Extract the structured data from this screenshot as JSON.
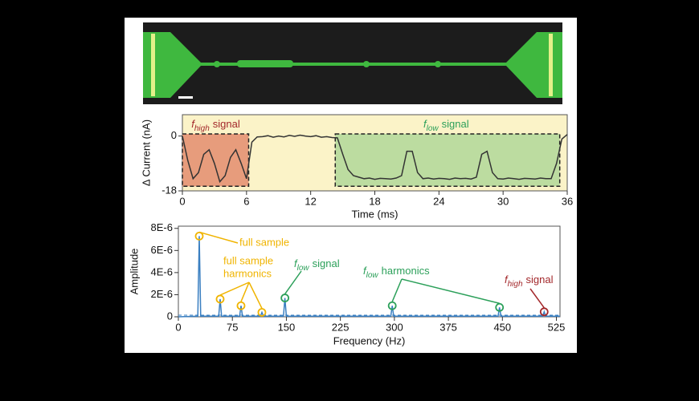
{
  "chart_data": [
    {
      "type": "line",
      "ylabel": "Δ Current (nA)",
      "xlabel": "Time (ms)",
      "xlim": [
        0,
        36
      ],
      "xticks": [
        0,
        6,
        12,
        18,
        24,
        30,
        36
      ],
      "ylim": [
        -18,
        7
      ],
      "yticks": [
        -18,
        0
      ],
      "background": "#fbf3c8",
      "x": [
        0,
        0.5,
        1,
        1.5,
        2,
        2.5,
        3,
        3.5,
        4,
        4.5,
        5,
        5.5,
        6,
        6.5,
        7,
        7.5,
        8,
        8.5,
        9,
        9.5,
        10,
        10.5,
        11,
        11.5,
        12,
        12.5,
        13,
        13.5,
        14,
        14.5,
        15,
        15.5,
        16,
        16.5,
        17,
        17.5,
        18,
        18.5,
        19,
        19.5,
        20,
        20.5,
        21,
        21.5,
        22,
        22.5,
        23,
        23.5,
        24,
        24.5,
        25,
        25.5,
        26,
        26.5,
        27,
        27.5,
        28,
        28.5,
        29,
        29.5,
        30,
        30.5,
        31,
        31.5,
        32,
        32.5,
        33,
        33.5,
        34,
        34.5,
        35,
        35.5,
        36
      ],
      "series": [
        {
          "color": "#333333",
          "values": [
            0,
            -8,
            -14,
            -12,
            -6,
            -4.5,
            -9,
            -15,
            -13,
            -7,
            -4.5,
            -9,
            -14,
            -2,
            -0.3,
            -0.2,
            0.1,
            -0.4,
            0,
            -0.3,
            0.2,
            -0.1,
            0.3,
            0,
            -0.2,
            0.1,
            -0.4,
            -0.2,
            -0.5,
            -0.6,
            -6,
            -11,
            -13,
            -13.5,
            -14,
            -13.8,
            -14.2,
            -13.9,
            -14,
            -14.1,
            -13.8,
            -13,
            -5,
            -5,
            -12,
            -14,
            -13.8,
            -14.1,
            -13.9,
            -14,
            -14.2,
            -13.8,
            -14,
            -13.9,
            -14.1,
            -13.5,
            -6,
            -5,
            -12,
            -14,
            -14.1,
            -13.8,
            -14,
            -14.2,
            -13.9,
            -14,
            -14.1,
            -13.8,
            -14,
            -14,
            -9,
            -1,
            0.5
          ]
        }
      ],
      "regions": [
        {
          "xlim": [
            0,
            6.2
          ],
          "ylim": [
            -16.5,
            0.7
          ],
          "color": "#e79c7c",
          "italic": "f",
          "sub": "high",
          "text": "signal",
          "label_color": "#a3282b"
        },
        {
          "xlim": [
            14.3,
            35.3
          ],
          "ylim": [
            -16.5,
            0.7
          ],
          "color": "#bcdca0",
          "italic": "f",
          "sub": "low",
          "text": "signal",
          "label_color": "#2ca05a"
        }
      ]
    },
    {
      "type": "line",
      "ylabel": "Amplitude",
      "xlabel": "Frequency (Hz)",
      "xlim": [
        0,
        530
      ],
      "xticks": [
        0,
        75,
        150,
        225,
        300,
        375,
        450,
        525
      ],
      "ylim": [
        0,
        8.2e-06
      ],
      "yticks": [
        0,
        {
          "value": 2e-06,
          "label": "2E-6"
        },
        {
          "value": 4e-06,
          "label": "4E-6"
        },
        {
          "value": 6e-06,
          "label": "6E-6"
        },
        {
          "value": 8e-06,
          "label": "8E-6"
        }
      ],
      "x": [
        0,
        27,
        29,
        31,
        56,
        58,
        60,
        85,
        87,
        89,
        114,
        116,
        118,
        146,
        148,
        150,
        295,
        297,
        299,
        444,
        446,
        448,
        506,
        508,
        510,
        530
      ],
      "series": [
        {
          "color": "#3a7fc1",
          "values": [
            0,
            5e-08,
            7.3e-06,
            5e-08,
            5e-08,
            1.6e-06,
            5e-08,
            5e-08,
            1e-06,
            5e-08,
            5e-08,
            4e-07,
            5e-08,
            5e-08,
            1.7e-06,
            5e-08,
            5e-08,
            1e-06,
            5e-08,
            5e-08,
            8.5e-07,
            5e-08,
            5e-08,
            4.5e-07,
            5e-08,
            5e-08
          ]
        }
      ],
      "point_colors": [
        null,
        null,
        "#f0b400",
        null,
        null,
        "#f0b400",
        null,
        null,
        "#f0b400",
        null,
        null,
        "#f0b400",
        null,
        null,
        "#2ca05a",
        null,
        null,
        "#2ca05a",
        null,
        null,
        "#2ca05a",
        null,
        null,
        "#a3282b",
        null,
        null
      ],
      "annotations": [
        {
          "lines": [
            "full sample"
          ],
          "color": "#f0b400"
        },
        {
          "lines": [
            "full sample",
            "harmonics"
          ],
          "color": "#f0b400"
        },
        {
          "italic": "f",
          "sub": "low",
          "text": "signal",
          "color": "#2ca05a"
        },
        {
          "italic": "f",
          "sub": "low",
          "text": "harmonics",
          "color": "#2ca05a"
        },
        {
          "italic": "f",
          "sub": "high",
          "text": "signal",
          "color": "#a3282b"
        }
      ]
    }
  ]
}
